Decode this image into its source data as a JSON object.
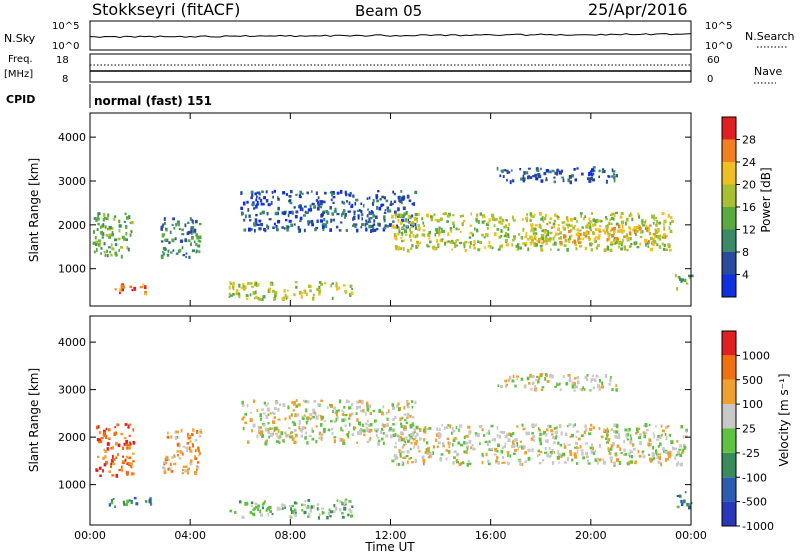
{
  "header": {
    "station": "Stokkseyri (fitACF)",
    "beam": "Beam 05",
    "date": "25/Apr/2016"
  },
  "noise_panel": {
    "left_label": "N.Sky",
    "right_label": "N.Search",
    "left_ticks": [
      "10^5",
      "10^0"
    ],
    "right_ticks": [
      "10^5",
      "10^0"
    ]
  },
  "freq_panel": {
    "left_label_1": "Freq.",
    "left_label_2": "[MHz]",
    "right_label": "Nave",
    "left_ticks": [
      "18",
      "8"
    ],
    "right_ticks": [
      "60",
      "0"
    ]
  },
  "cpid_panel": {
    "label": "CPID",
    "mode": "normal (fast) 151"
  },
  "chart_data": [
    {
      "type": "heatmap",
      "panel": "power",
      "ylabel": "Slant Range [km]",
      "xlabel": "",
      "yticks": [
        1000,
        2000,
        3000,
        4000
      ],
      "ylim": [
        150,
        4550
      ],
      "xlim_hours": [
        0,
        24
      ],
      "colorbar": {
        "label": "Power [dB]",
        "ticks": [
          "4",
          "8",
          "12",
          "16",
          "20",
          "24",
          "28"
        ],
        "colors": [
          "#1030e0",
          "#2a4a9c",
          "#3a8a6a",
          "#5aaa40",
          "#a8c030",
          "#f0c020",
          "#f08020",
          "#e02020"
        ]
      },
      "echo_regions": [
        {
          "t0": 0.1,
          "t1": 1.7,
          "r0": 1300,
          "r1": 2300,
          "level": 3
        },
        {
          "t0": 0.9,
          "t1": 2.2,
          "r0": 450,
          "r1": 700,
          "level": 6
        },
        {
          "t0": 2.8,
          "t1": 4.4,
          "r0": 1250,
          "r1": 2200,
          "level": 2
        },
        {
          "t0": 5.5,
          "t1": 10.5,
          "r0": 330,
          "r1": 720,
          "level": 4
        },
        {
          "t0": 6.0,
          "t1": 13.0,
          "r0": 1900,
          "r1": 2800,
          "level": 1
        },
        {
          "t0": 12.0,
          "t1": 23.2,
          "r0": 1450,
          "r1": 2300,
          "level": 4
        },
        {
          "t0": 17.5,
          "t1": 23.0,
          "r0": 1600,
          "r1": 2050,
          "level": 5
        },
        {
          "t0": 16.2,
          "t1": 21.0,
          "r0": 3000,
          "r1": 3350,
          "level": 1
        },
        {
          "t0": 23.3,
          "t1": 24.0,
          "r0": 550,
          "r1": 900,
          "level": 3
        }
      ]
    },
    {
      "type": "heatmap",
      "panel": "velocity",
      "ylabel": "Slant Range [km]",
      "xlabel": "Time UT",
      "yticks": [
        1000,
        2000,
        3000,
        4000
      ],
      "ylim": [
        150,
        4550
      ],
      "xticks": [
        "00:00",
        "04:00",
        "08:00",
        "12:00",
        "16:00",
        "20:00",
        "00:00"
      ],
      "xtick_hours": [
        0,
        4,
        8,
        12,
        16,
        20,
        24
      ],
      "colorbar": {
        "label": "Velocity [m s⁻¹]",
        "ticks": [
          "1000",
          "500",
          "100",
          "25",
          "-25",
          "-100",
          "-500",
          "-1000"
        ],
        "colors": [
          "#2838b8",
          "#2a5cb0",
          "#3a8a5a",
          "#60c040",
          "#c8c8c8",
          "#f0a030",
          "#f07010",
          "#e02020"
        ]
      },
      "echo_regions": [
        {
          "t0": 0.1,
          "t1": 1.7,
          "r0": 1200,
          "r1": 2300,
          "level": 6
        },
        {
          "t0": 0.7,
          "t1": 2.4,
          "r0": 550,
          "r1": 750,
          "level": 2
        },
        {
          "t0": 2.8,
          "t1": 4.4,
          "r0": 1250,
          "r1": 2200,
          "level": 5
        },
        {
          "t0": 5.5,
          "t1": 10.5,
          "r0": 330,
          "r1": 720,
          "level": 3
        },
        {
          "t0": 6.0,
          "t1": 13.0,
          "r0": 1900,
          "r1": 2800,
          "level": 4
        },
        {
          "t0": 12.0,
          "t1": 23.8,
          "r0": 1450,
          "r1": 2300,
          "level": 4
        },
        {
          "t0": 16.2,
          "t1": 21.0,
          "r0": 3000,
          "r1": 3350,
          "level": 4
        },
        {
          "t0": 23.3,
          "t1": 24.0,
          "r0": 550,
          "r1": 900,
          "level": 2
        }
      ]
    }
  ]
}
